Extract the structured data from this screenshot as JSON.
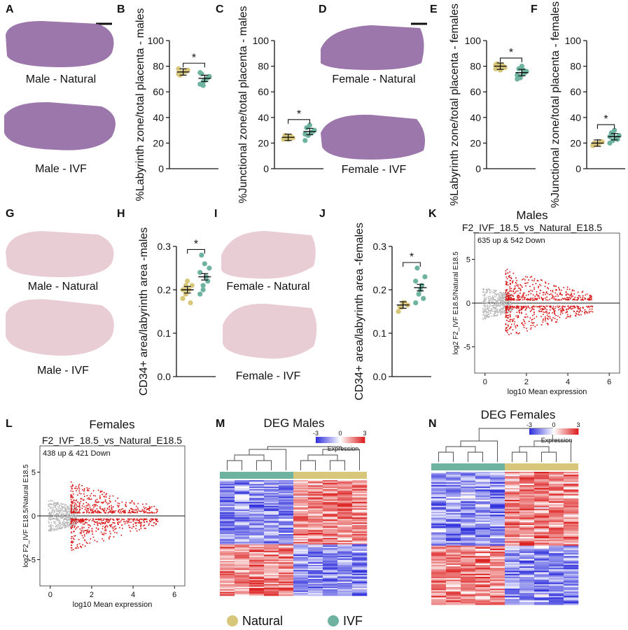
{
  "panel_letters": [
    "A",
    "B",
    "C",
    "D",
    "E",
    "F",
    "G",
    "H",
    "I",
    "J",
    "K",
    "L",
    "M",
    "N"
  ],
  "images": {
    "A": [
      "Male - Natural",
      "Male - IVF"
    ],
    "D": [
      "Female - Natural",
      "Female - IVF"
    ],
    "G": [
      "Male - Natural",
      "Male - IVF"
    ],
    "I": [
      "Female - Natural",
      "Female - IVF"
    ]
  },
  "colors": {
    "natural": "#d8c77a",
    "ivf": "#6db3a0",
    "ma_red": "#d91a1a",
    "ma_grey": "#b8b8b8",
    "heat_low": "#3333dd",
    "heat_mid": "#ffffff",
    "heat_high": "#dd2222",
    "stain_he": "#8a5f9e",
    "stain_cd34": "#e9cdd5"
  },
  "legend": {
    "natural": "Natural",
    "ivf": "IVF"
  },
  "chart_data": [
    {
      "panel": "B",
      "type": "scatter",
      "ylabel": "%Labyrinth zone/total placenta - males",
      "ylim": [
        0,
        100
      ],
      "yticks": [
        0,
        20,
        40,
        60,
        80,
        100
      ],
      "sig": "*",
      "series": [
        {
          "name": "Natural",
          "values": [
            74,
            75,
            76,
            77,
            73,
            75,
            76,
            78,
            74
          ],
          "mean": 75.5
        },
        {
          "name": "IVF",
          "values": [
            66,
            68,
            70,
            72,
            74,
            69,
            71,
            75,
            65
          ],
          "mean": 70.5
        }
      ]
    },
    {
      "panel": "C",
      "type": "scatter",
      "ylabel": "%Junctional zone/total placenta - males",
      "ylim": [
        0,
        100
      ],
      "yticks": [
        0,
        20,
        40,
        60,
        80,
        100
      ],
      "sig": "*",
      "series": [
        {
          "name": "Natural",
          "values": [
            23,
            24,
            25,
            24,
            26,
            23,
            25
          ],
          "mean": 24.5
        },
        {
          "name": "IVF",
          "values": [
            22,
            26,
            28,
            30,
            32,
            34,
            29,
            27
          ],
          "mean": 29
        }
      ]
    },
    {
      "panel": "E",
      "type": "scatter",
      "ylabel": "%Labyrinth zone/total placenta - females",
      "ylim": [
        0,
        100
      ],
      "yticks": [
        0,
        20,
        40,
        60,
        80,
        100
      ],
      "sig": "*",
      "series": [
        {
          "name": "Natural",
          "values": [
            78,
            80,
            81,
            79,
            82,
            77,
            80,
            81
          ],
          "mean": 80
        },
        {
          "name": "IVF",
          "values": [
            70,
            72,
            74,
            76,
            78,
            80,
            75,
            73,
            71,
            77
          ],
          "mean": 75
        }
      ]
    },
    {
      "panel": "F",
      "type": "scatter",
      "ylabel": "%Junctional zone/total placenta - females",
      "ylim": [
        0,
        100
      ],
      "yticks": [
        0,
        20,
        40,
        60,
        80,
        100
      ],
      "sig": "*",
      "series": [
        {
          "name": "Natural",
          "values": [
            18,
            19,
            20,
            21,
            20,
            19,
            21
          ],
          "mean": 20
        },
        {
          "name": "IVF",
          "values": [
            20,
            22,
            24,
            26,
            28,
            30,
            23,
            25,
            27
          ],
          "mean": 25
        }
      ]
    },
    {
      "panel": "H",
      "type": "scatter",
      "ylabel": "CD34+ area/labyrinth area -males",
      "ylim": [
        0,
        0.3
      ],
      "yticks": [
        0.0,
        0.1,
        0.2,
        0.3
      ],
      "sig": "*",
      "series": [
        {
          "name": "Natural",
          "values": [
            0.18,
            0.19,
            0.2,
            0.21,
            0.2,
            0.22,
            0.17,
            0.2,
            0.21
          ],
          "mean": 0.2
        },
        {
          "name": "IVF",
          "values": [
            0.19,
            0.21,
            0.23,
            0.25,
            0.28,
            0.26,
            0.22,
            0.24,
            0.2
          ],
          "mean": 0.23
        }
      ]
    },
    {
      "panel": "J",
      "type": "scatter",
      "ylabel": "CD34+ area/labyrinth area -females",
      "ylim": [
        0,
        0.3
      ],
      "yticks": [
        0.0,
        0.1,
        0.2,
        0.3
      ],
      "sig": "*",
      "series": [
        {
          "name": "Natural",
          "values": [
            0.15,
            0.16,
            0.17,
            0.165,
            0.16,
            0.17
          ],
          "mean": 0.165
        },
        {
          "name": "IVF",
          "values": [
            0.17,
            0.19,
            0.21,
            0.23,
            0.25,
            0.2,
            0.18,
            0.22
          ],
          "mean": 0.205
        }
      ]
    },
    {
      "panel": "K",
      "type": "scatter",
      "title": "Males",
      "subtitle": "F2_IVF_18.5_vs_Natural_E18.5",
      "note": "635 up & 542 Down",
      "xlabel": "log10 Mean expression",
      "ylabel": "log2 F2_IVF E18.5/Natural E18.5",
      "xlim": [
        -0.5,
        6.5
      ],
      "ylim": [
        -8,
        8
      ],
      "xticks": [
        0,
        2,
        4,
        6
      ],
      "yticks": [
        -5,
        0,
        5
      ]
    },
    {
      "panel": "L",
      "type": "scatter",
      "title": "Females",
      "subtitle": "F2_IVF_18.5_vs_Natural_E18.5",
      "note": "438 up & 421 Down",
      "xlabel": "log10 Mean expression",
      "ylabel": "log2 F2_IVF E18.5/Natural E18.5",
      "xlim": [
        -0.5,
        6.5
      ],
      "ylim": [
        -8,
        8
      ],
      "xticks": [
        0,
        2,
        4,
        6
      ],
      "yticks": [
        -5,
        0,
        5
      ]
    },
    {
      "panel": "M",
      "type": "heatmap",
      "title": "DEG Males",
      "legend_title": "Expression",
      "legend_ticks": [
        -3,
        0,
        3
      ],
      "groups": [
        "IVF",
        "Natural"
      ],
      "n_cols": 10
    },
    {
      "panel": "N",
      "type": "heatmap",
      "title": "DEG Females",
      "legend_title": "Expression",
      "legend_ticks": [
        -3,
        0,
        3
      ],
      "groups": [
        "IVF",
        "Natural"
      ],
      "n_cols": 10
    }
  ]
}
